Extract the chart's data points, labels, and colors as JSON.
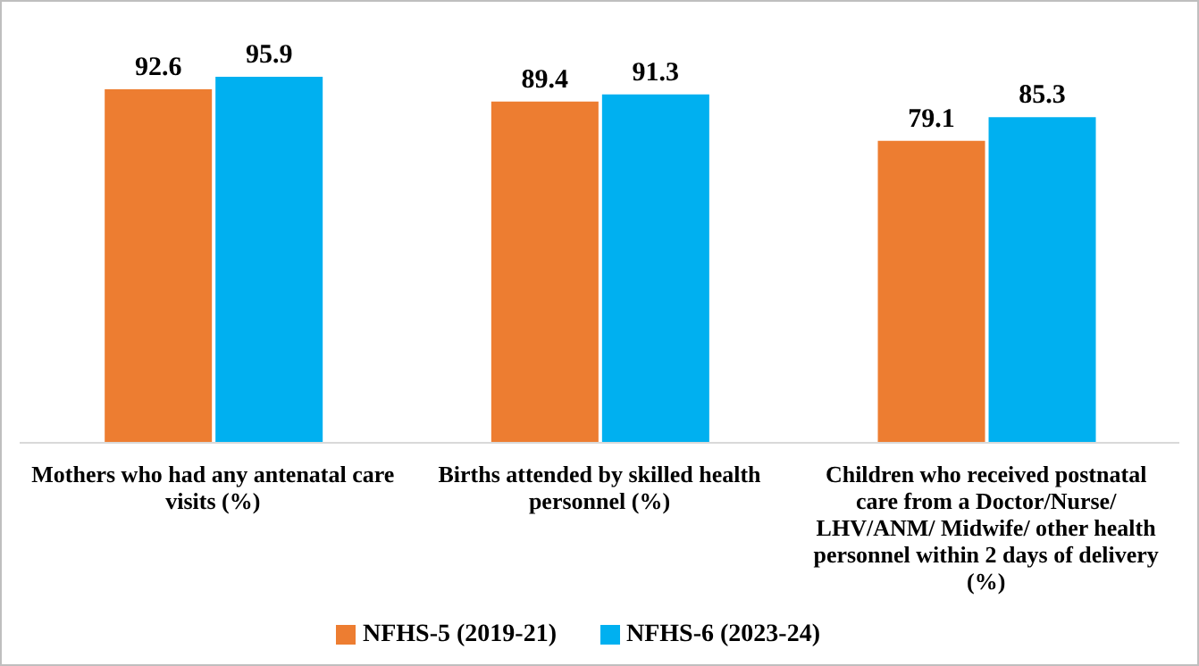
{
  "chart_data": {
    "type": "bar",
    "categories": [
      "Mothers who had any antenatal care visits (%)",
      "Births attended by skilled health personnel (%)",
      "Children who received postnatal care from a Doctor/Nurse/ LHV/ANM/ Midwife/ other health personnel within 2 days of delivery (%)"
    ],
    "series": [
      {
        "name": "NFHS-5  (2019-21)",
        "color": "#ed7d31",
        "values": [
          92.6,
          89.4,
          79.1
        ]
      },
      {
        "name": "NFHS-6  (2023-24)",
        "color": "#00b0f0",
        "values": [
          95.9,
          91.3,
          85.3
        ]
      }
    ],
    "data_labels": true,
    "legend": "bottom"
  }
}
